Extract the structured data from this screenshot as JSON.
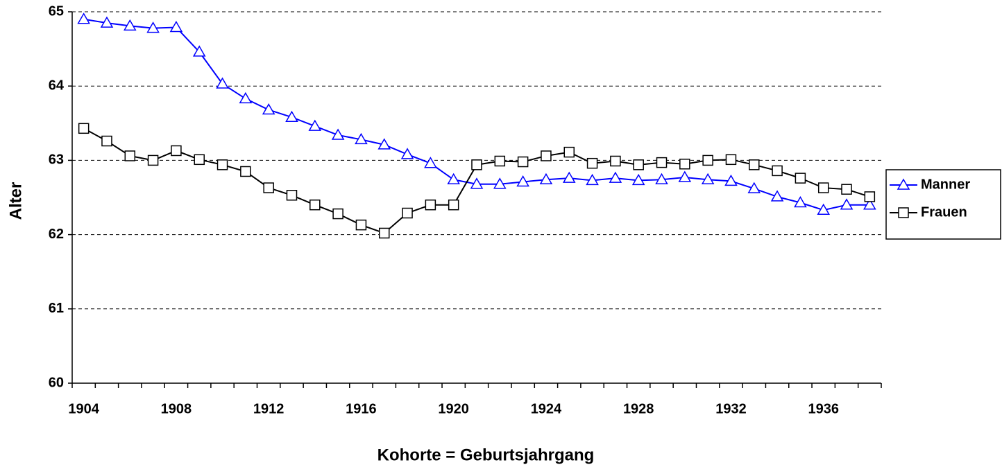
{
  "chart_data": {
    "type": "line",
    "x_label": "Kohorte = Geburtsjahrgang",
    "y_label": "Alter",
    "categories": [
      "1904",
      null,
      null,
      null,
      "1908",
      null,
      null,
      null,
      "1912",
      null,
      null,
      null,
      "1916",
      null,
      null,
      null,
      "1920",
      null,
      null,
      null,
      "1924",
      null,
      null,
      null,
      "1928",
      null,
      null,
      null,
      "1932",
      null,
      null,
      null,
      "1936",
      null,
      null
    ],
    "series": [
      {
        "name": "Manner",
        "color": "#0000ff",
        "marker": "triangle",
        "values": [
          64.9,
          64.85,
          64.81,
          64.78,
          64.79,
          64.46,
          64.03,
          63.83,
          63.68,
          63.58,
          63.46,
          63.34,
          63.28,
          63.21,
          63.08,
          62.96,
          62.74,
          62.68,
          62.68,
          62.71,
          62.74,
          62.76,
          62.73,
          62.76,
          62.73,
          62.74,
          62.77,
          62.74,
          62.72,
          62.62,
          62.51,
          62.43,
          62.33,
          62.4,
          62.4
        ]
      },
      {
        "name": "Frauen",
        "color": "#000000",
        "marker": "square",
        "values": [
          63.43,
          63.26,
          63.06,
          63.0,
          63.13,
          63.01,
          62.94,
          62.85,
          62.63,
          62.53,
          62.4,
          62.28,
          62.13,
          62.02,
          62.29,
          62.4,
          62.4,
          62.94,
          62.99,
          62.98,
          63.06,
          63.11,
          62.96,
          62.99,
          62.94,
          62.97,
          62.95,
          63.0,
          63.01,
          62.94,
          62.86,
          62.76,
          62.63,
          62.61,
          62.51
        ]
      }
    ],
    "ylim": [
      60,
      65
    ],
    "yticks": [
      60,
      61,
      62,
      63,
      64,
      65
    ],
    "grid": true,
    "legend": "right"
  }
}
